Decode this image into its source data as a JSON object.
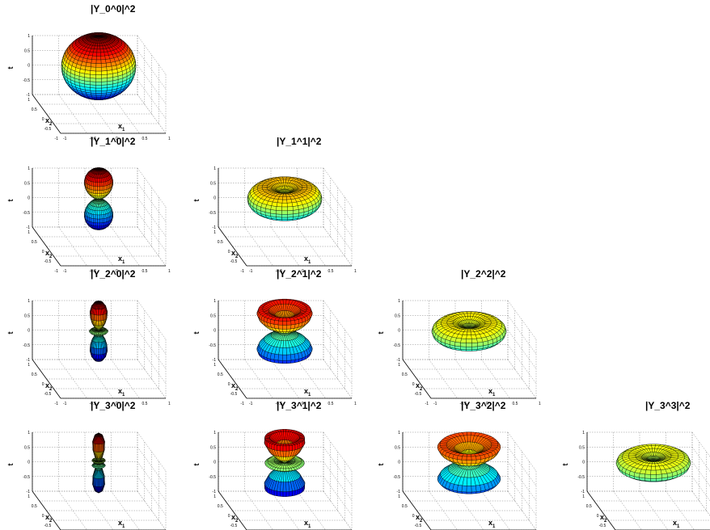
{
  "figure": {
    "background": "#ffffff",
    "colormap": "jet",
    "mesh_edge_color": "#000000"
  },
  "chart_data": [
    {
      "type": "surface3d",
      "title": "|Y_0^0|^2",
      "l": 0,
      "m": 0,
      "zlabel": "t",
      "xlabel": "x",
      "xlabel_sub": "1",
      "ylabel": "x",
      "ylabel_sub": "2",
      "zlim": [
        -1,
        1
      ],
      "xlim": [
        -1,
        1
      ],
      "ylim": [
        -1,
        1
      ],
      "z_ticks": [
        "1",
        "0.5",
        "0",
        "-0.5",
        "-1"
      ],
      "x_ticks": [
        "-1",
        "-0.5",
        "0",
        "0.5",
        "1"
      ],
      "y_ticks": [
        "1",
        "0.5",
        "0",
        "-0.5",
        "-1"
      ],
      "grid": true
    },
    {
      "type": "surface3d",
      "title": "|Y_1^0|^2",
      "l": 1,
      "m": 0,
      "zlabel": "t",
      "xlabel": "x",
      "xlabel_sub": "1",
      "ylabel": "x",
      "ylabel_sub": "2",
      "zlim": [
        -1,
        1
      ],
      "xlim": [
        -1,
        1
      ],
      "ylim": [
        -1,
        1
      ],
      "z_ticks": [
        "1",
        "0.5",
        "0",
        "-0.5",
        "-1"
      ],
      "x_ticks": [
        "-1",
        "-0.5",
        "0",
        "0.5",
        "1"
      ],
      "y_ticks": [
        "1",
        "0.5",
        "0",
        "-0.5",
        "-1"
      ],
      "grid": true
    },
    {
      "type": "surface3d",
      "title": "|Y_1^1|^2",
      "l": 1,
      "m": 1,
      "zlabel": "t",
      "xlabel": "x",
      "xlabel_sub": "1",
      "ylabel": "x",
      "ylabel_sub": "2",
      "zlim": [
        -1,
        1
      ],
      "xlim": [
        -1,
        1
      ],
      "ylim": [
        -1,
        1
      ],
      "z_ticks": [
        "1",
        "0.5",
        "0",
        "-0.5",
        "-1"
      ],
      "x_ticks": [
        "-1",
        "-0.5",
        "0",
        "0.5",
        "1"
      ],
      "y_ticks": [
        "1",
        "0.5",
        "0",
        "-0.5",
        "-1"
      ],
      "grid": true
    },
    {
      "type": "surface3d",
      "title": "|Y_2^0|^2",
      "l": 2,
      "m": 0,
      "zlabel": "t",
      "xlabel": "x",
      "xlabel_sub": "1",
      "ylabel": "x",
      "ylabel_sub": "2",
      "zlim": [
        -1,
        1
      ],
      "xlim": [
        -1,
        1
      ],
      "ylim": [
        -1,
        1
      ],
      "z_ticks": [
        "1",
        "0.5",
        "0",
        "-0.5",
        "-1"
      ],
      "x_ticks": [
        "-1",
        "-0.5",
        "0",
        "0.5",
        "1"
      ],
      "y_ticks": [
        "1",
        "0.5",
        "0",
        "-0.5",
        "-1"
      ],
      "grid": true
    },
    {
      "type": "surface3d",
      "title": "|Y_2^1|^2",
      "l": 2,
      "m": 1,
      "zlabel": "t",
      "xlabel": "x",
      "xlabel_sub": "1",
      "ylabel": "x",
      "ylabel_sub": "2",
      "zlim": [
        -1,
        1
      ],
      "xlim": [
        -1,
        1
      ],
      "ylim": [
        -1,
        1
      ],
      "z_ticks": [
        "1",
        "0.5",
        "0",
        "-0.5",
        "-1"
      ],
      "x_ticks": [
        "-1",
        "-0.5",
        "0",
        "0.5",
        "1"
      ],
      "y_ticks": [
        "1",
        "0.5",
        "0",
        "-0.5",
        "-1"
      ],
      "grid": true
    },
    {
      "type": "surface3d",
      "title": "|Y_2^2|^2",
      "l": 2,
      "m": 2,
      "zlabel": "t",
      "xlabel": "x",
      "xlabel_sub": "1",
      "ylabel": "x",
      "ylabel_sub": "2",
      "zlim": [
        -1,
        1
      ],
      "xlim": [
        -1,
        1
      ],
      "ylim": [
        -1,
        1
      ],
      "z_ticks": [
        "1",
        "0.5",
        "0",
        "-0.5",
        "-1"
      ],
      "x_ticks": [
        "-1",
        "-0.5",
        "0",
        "0.5",
        "1"
      ],
      "y_ticks": [
        "1",
        "0.5",
        "0",
        "-0.5",
        "-1"
      ],
      "grid": true
    },
    {
      "type": "surface3d",
      "title": "|Y_3^0|^2",
      "l": 3,
      "m": 0,
      "zlabel": "t",
      "xlabel": "x",
      "xlabel_sub": "1",
      "ylabel": "x",
      "ylabel_sub": "2",
      "zlim": [
        -1,
        1
      ],
      "xlim": [
        -1,
        1
      ],
      "ylim": [
        -1,
        1
      ],
      "z_ticks": [
        "1",
        "0.5",
        "0",
        "-0.5",
        "-1"
      ],
      "x_ticks": [
        "-1",
        "-0.5",
        "0",
        "0.5",
        "1"
      ],
      "y_ticks": [
        "1",
        "0.5",
        "0",
        "-0.5",
        "-1"
      ],
      "grid": true
    },
    {
      "type": "surface3d",
      "title": "|Y_3^1|^2",
      "l": 3,
      "m": 1,
      "zlabel": "t",
      "xlabel": "x",
      "xlabel_sub": "1",
      "ylabel": "x",
      "ylabel_sub": "2",
      "zlim": [
        -1,
        1
      ],
      "xlim": [
        -1,
        1
      ],
      "ylim": [
        -1,
        1
      ],
      "z_ticks": [
        "1",
        "0.5",
        "0",
        "-0.5",
        "-1"
      ],
      "x_ticks": [
        "-1",
        "-0.5",
        "0",
        "0.5",
        "1"
      ],
      "y_ticks": [
        "1",
        "0.5",
        "0",
        "-0.5",
        "-1"
      ],
      "grid": true
    },
    {
      "type": "surface3d",
      "title": "|Y_3^2|^2",
      "l": 3,
      "m": 2,
      "zlabel": "t",
      "xlabel": "x",
      "xlabel_sub": "1",
      "ylabel": "x",
      "ylabel_sub": "2",
      "zlim": [
        -1,
        1
      ],
      "xlim": [
        -1,
        1
      ],
      "ylim": [
        -1,
        1
      ],
      "z_ticks": [
        "1",
        "0.5",
        "0",
        "-0.5",
        "-1"
      ],
      "x_ticks": [
        "-1",
        "-0.5",
        "0",
        "0.5",
        "1"
      ],
      "y_ticks": [
        "1",
        "0.5",
        "0",
        "-0.5",
        "-1"
      ],
      "grid": true
    },
    {
      "type": "surface3d",
      "title": "|Y_3^3|^2",
      "l": 3,
      "m": 3,
      "zlabel": "t",
      "xlabel": "x",
      "xlabel_sub": "1",
      "ylabel": "x",
      "ylabel_sub": "2",
      "zlim": [
        -1,
        1
      ],
      "xlim": [
        -1,
        1
      ],
      "ylim": [
        -1,
        1
      ],
      "z_ticks": [
        "1",
        "0.5",
        "0",
        "-0.5",
        "-1"
      ],
      "x_ticks": [
        "-1",
        "-0.5",
        "0",
        "0.5",
        "1"
      ],
      "y_ticks": [
        "1",
        "0.5",
        "0",
        "-0.5",
        "-1"
      ],
      "grid": true
    }
  ]
}
